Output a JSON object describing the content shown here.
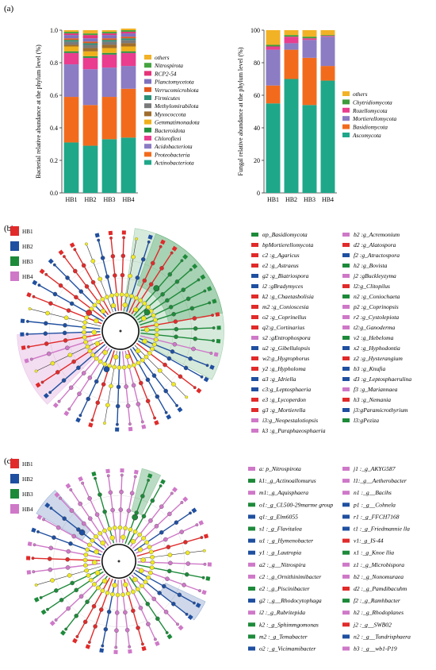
{
  "panels": {
    "a": "(a)",
    "b": "(b)",
    "c": "(c)"
  },
  "chart_data": [
    {
      "type": "bar",
      "stacked": true,
      "ylabel": "Bacterial relative abundance at the phylum level (%)",
      "categories": [
        "HB1",
        "HB2",
        "HB3",
        "HB4"
      ],
      "ylim": [
        0,
        1.0
      ],
      "yticks": [
        "0.0",
        "0.2",
        "0.4",
        "0.6",
        "0.8",
        "1.0"
      ],
      "legend_position": "right",
      "series": [
        {
          "name": "Actinobacteriota",
          "color": "#1fa78a",
          "values": [
            0.31,
            0.29,
            0.33,
            0.34
          ]
        },
        {
          "name": "Proteobacteria",
          "color": "#f26b1d",
          "values": [
            0.28,
            0.25,
            0.26,
            0.3
          ]
        },
        {
          "name": "Acidobacteriota",
          "color": "#8b7cc4",
          "values": [
            0.2,
            0.22,
            0.18,
            0.14
          ]
        },
        {
          "name": "Chloroflexi",
          "color": "#ea3d8f",
          "values": [
            0.07,
            0.07,
            0.08,
            0.08
          ]
        },
        {
          "name": "Bacteroidota",
          "color": "#23903f",
          "values": [
            0.01,
            0.01,
            0.01,
            0.01
          ]
        },
        {
          "name": "Gemmatimonadota",
          "color": "#f0b01b",
          "values": [
            0.03,
            0.03,
            0.03,
            0.03
          ]
        },
        {
          "name": "Myxococcota",
          "color": "#9f6d2c",
          "values": [
            0.01,
            0.02,
            0.02,
            0.02
          ]
        },
        {
          "name": "Methylomirabilota",
          "color": "#7a7a7a",
          "values": [
            0.02,
            0.02,
            0.02,
            0.02
          ]
        },
        {
          "name": "Firmicutes",
          "color": "#2b9078",
          "values": [
            0.01,
            0.01,
            0.01,
            0.01
          ]
        },
        {
          "name": "Verrucomicrobiota",
          "color": "#e5571b",
          "values": [
            0.01,
            0.01,
            0.01,
            0.01
          ]
        },
        {
          "name": "Planctomycetota",
          "color": "#7e72bf",
          "values": [
            0.02,
            0.02,
            0.02,
            0.02
          ]
        },
        {
          "name": "RCP2-54",
          "color": "#e6337a",
          "values": [
            0.01,
            0.02,
            0.01,
            0.01
          ]
        },
        {
          "name": "Nitrospirota",
          "color": "#45a43f",
          "values": [
            0.01,
            0.01,
            0.01,
            0.01
          ]
        },
        {
          "name": "others",
          "color": "#f2b226",
          "values": [
            0.01,
            0.02,
            0.01,
            0.01
          ]
        }
      ]
    },
    {
      "type": "bar",
      "stacked": true,
      "ylabel": "Fungal relative abundance at the phylum level (%)",
      "categories": [
        "HB1",
        "HB2",
        "HB3",
        "HB4"
      ],
      "ylim": [
        0,
        100
      ],
      "yticks": [
        "0",
        "20",
        "40",
        "60",
        "80",
        "100"
      ],
      "legend_position": "right",
      "series": [
        {
          "name": "Ascomycota",
          "color": "#1fa78a",
          "values": [
            55,
            70,
            54,
            69
          ]
        },
        {
          "name": "Basidiomycota",
          "color": "#f26b1d",
          "values": [
            11,
            18,
            29,
            9
          ]
        },
        {
          "name": "Mortierellomycota",
          "color": "#8b7cc4",
          "values": [
            22,
            4,
            11,
            18
          ]
        },
        {
          "name": "Rozellomycota",
          "color": "#ea3d8f",
          "values": [
            2,
            4,
            1,
            0.5
          ]
        },
        {
          "name": "Chytridiomycota",
          "color": "#3e9c3a",
          "values": [
            1,
            1,
            1,
            0.5
          ]
        },
        {
          "name": "others",
          "color": "#f2b226",
          "values": [
            9,
            3,
            4,
            3
          ]
        }
      ]
    }
  ],
  "lefse_b": {
    "groups": [
      {
        "label": "HB1",
        "color": "#e12a2a"
      },
      {
        "label": "HB2",
        "color": "#1f4fa0"
      },
      {
        "label": "HB3",
        "color": "#1d8a3a"
      },
      {
        "label": "HB4",
        "color": "#cf78c8"
      }
    ],
    "col1": [
      {
        "t": "αp_Basidiomycota",
        "c": 2
      },
      {
        "t": "bpMortierellomycota",
        "c": 0
      },
      {
        "t": "c2 :g_Agaricus",
        "c": 0
      },
      {
        "t": "e2 :g_Astraeus",
        "c": 0
      },
      {
        "t": "g2 :g_Biatriospora",
        "c": 1
      },
      {
        "t": "i2 :gBradymyces",
        "c": 1
      },
      {
        "t": "k2 :g_Chaetasbolisia",
        "c": 0
      },
      {
        "t": "m2 :g_Conioscesia",
        "c": 0
      },
      {
        "t": "o2 :g_Coprinellus",
        "c": 0
      },
      {
        "t": "q2:g_Cortinarius",
        "c": 0
      },
      {
        "t": "s2 :gEntrophospora",
        "c": 3
      },
      {
        "t": "u2 :g_Gibellulopsis",
        "c": 1
      },
      {
        "t": "w2:g_Hygrophorus",
        "c": 0
      },
      {
        "t": "y2 :g_Hypholoma",
        "c": 0
      },
      {
        "t": "a3 :g_Idriella",
        "c": 1
      },
      {
        "t": "c3:g_Leptosphaeria",
        "c": 1
      },
      {
        "t": "e3 :g_Lycoperdon",
        "c": 0
      },
      {
        "t": "g3 :g_Mortierella",
        "c": 0
      },
      {
        "t": "i3:g_Neopestalotiopsis",
        "c": 3
      },
      {
        "t": "k3 :g_Paraphaeosphaeria",
        "c": 3
      }
    ],
    "col2": [
      {
        "t": "b2 :g_Acremonium",
        "c": 3
      },
      {
        "t": "d2 :g_Alatospora",
        "c": 0
      },
      {
        "t": "f2 :g_Atractospora",
        "c": 1
      },
      {
        "t": "h2 :g_Bovista",
        "c": 2
      },
      {
        "t": "j2 :gBuckleyzyma",
        "c": 3
      },
      {
        "t": "l2:g_Clitopilus",
        "c": 0
      },
      {
        "t": "n2 :g_Coniochaeta",
        "c": 2
      },
      {
        "t": "p2 :g_Coprinopsis",
        "c": 3
      },
      {
        "t": "r2 :g_Cystolepiota",
        "c": 3
      },
      {
        "t": "t2:g_Ganoderma",
        "c": 3
      },
      {
        "t": "v2 :g_Hebeloma",
        "c": 2
      },
      {
        "t": "x2 :g_Hyphodontia",
        "c": 1
      },
      {
        "t": "z2 :g_Hysterangium",
        "c": 0
      },
      {
        "t": "b3 :g_Knufia",
        "c": 1
      },
      {
        "t": "d3 :g_Leptosphaerulina",
        "c": 1
      },
      {
        "t": "f3 :g_Mariannaea",
        "c": 3
      },
      {
        "t": "h3 :g_Nemania",
        "c": 0
      },
      {
        "t": "j3:gParamicrothyrium",
        "c": 1
      },
      {
        "t": "l3:gPeziza",
        "c": 2
      }
    ]
  },
  "lefse_c": {
    "groups": [
      {
        "label": "HB1",
        "color": "#e12a2a"
      },
      {
        "label": "HB2",
        "color": "#1f4fa0"
      },
      {
        "label": "HB3",
        "color": "#1d8a3a"
      },
      {
        "label": "HB4",
        "color": "#cf78c8"
      }
    ],
    "col1": [
      {
        "t": "a: p_Nitrospirota",
        "c": 3
      },
      {
        "t": "k1:_g_Actinoallomurus",
        "c": 2
      },
      {
        "t": "m1:_g_Aquisphaera",
        "c": 3
      },
      {
        "t": "o1:_g_CL500-29marme group",
        "c": 2
      },
      {
        "t": "q1:_g_Elm6055",
        "c": 1
      },
      {
        "t": "s1 :_g_Flavitalea",
        "c": 2
      },
      {
        "t": "u1 :_g_Hymenobacter",
        "c": 1
      },
      {
        "t": "y1 :_g_Lautropia",
        "c": 1
      },
      {
        "t": "a2 :_g__Nitrospira",
        "c": 3
      },
      {
        "t": "c2 :_g_Ornithinimibacter",
        "c": 3
      },
      {
        "t": "e2 :_g_Piscinibacter",
        "c": 2
      },
      {
        "t": "g2 :_g__Rhodocytophaga",
        "c": 1
      },
      {
        "t": "i2 :_g_Rubritepida",
        "c": 3
      },
      {
        "t": "k2 :_g_Sphimmgomonas",
        "c": 2
      },
      {
        "t": "m2 :_g_Temabacter",
        "c": 2
      },
      {
        "t": "o2 :_g_Vicimamibacter",
        "c": 1
      }
    ],
    "col2": [
      {
        "t": "j1 :_g_AKYG587",
        "c": 3
      },
      {
        "t": "l1:_g__Aetherobacter",
        "c": 3
      },
      {
        "t": "n1 :_g__Bacihs",
        "c": 3
      },
      {
        "t": "p1 :_g__Cohnela",
        "c": 1
      },
      {
        "t": "r1 :_g_FFCH7168",
        "c": 1
      },
      {
        "t": "t1 :_g_Friedmannie lla",
        "c": 1
      },
      {
        "t": "v1:_g_IS-44",
        "c": 0
      },
      {
        "t": "x1 :_g_Knoe llia",
        "c": 2
      },
      {
        "t": "z1 :_g_Microbispora",
        "c": 3
      },
      {
        "t": "b2 :_g_Nonomuraea",
        "c": 3
      },
      {
        "t": "d2 :_g_Pamdibacuhm",
        "c": 0
      },
      {
        "t": "f2 :_g_Ramhbacter",
        "c": 2
      },
      {
        "t": "h2 :_g_Rhodoplanes",
        "c": 3
      },
      {
        "t": "j2 :_g__SWB02",
        "c": 0
      },
      {
        "t": "n2 :_g__Tundrisphaera",
        "c": 1
      },
      {
        "t": "b3 :_g__wb1-P19",
        "c": 3
      }
    ]
  }
}
